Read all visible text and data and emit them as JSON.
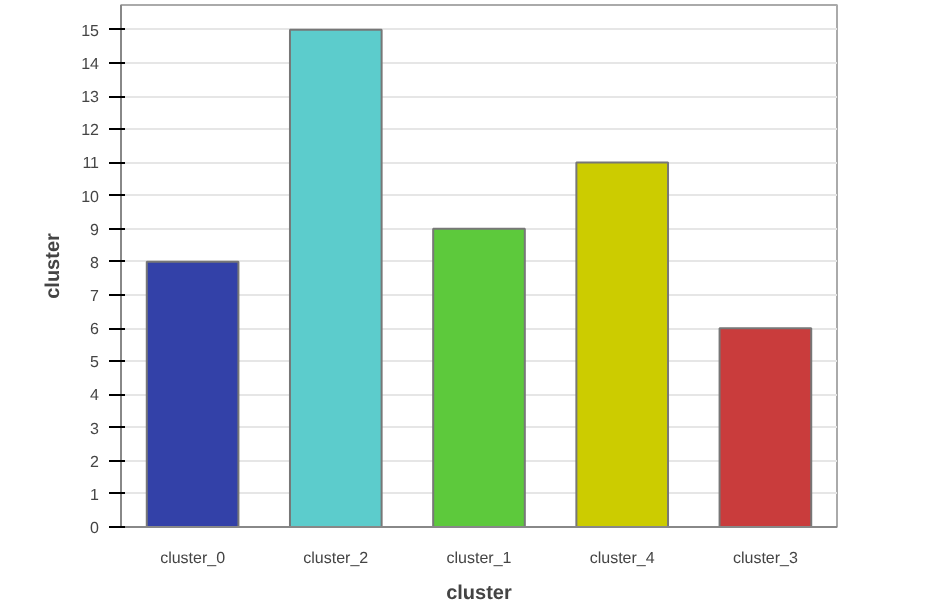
{
  "chart_data": {
    "type": "bar",
    "xlabel": "cluster",
    "ylabel": "cluster",
    "categories": [
      "cluster_0",
      "cluster_2",
      "cluster_1",
      "cluster_4",
      "cluster_3"
    ],
    "values": [
      8,
      15,
      9,
      11,
      6
    ],
    "colors": [
      "#3341a8",
      "#5ccccc",
      "#5dc93c",
      "#cccc00",
      "#c93c3c"
    ],
    "ylim": [
      0,
      15.75
    ],
    "yticks": [
      0,
      1,
      2,
      3,
      4,
      5,
      6,
      7,
      8,
      9,
      10,
      11,
      12,
      13,
      14,
      15
    ],
    "grid": "y"
  }
}
